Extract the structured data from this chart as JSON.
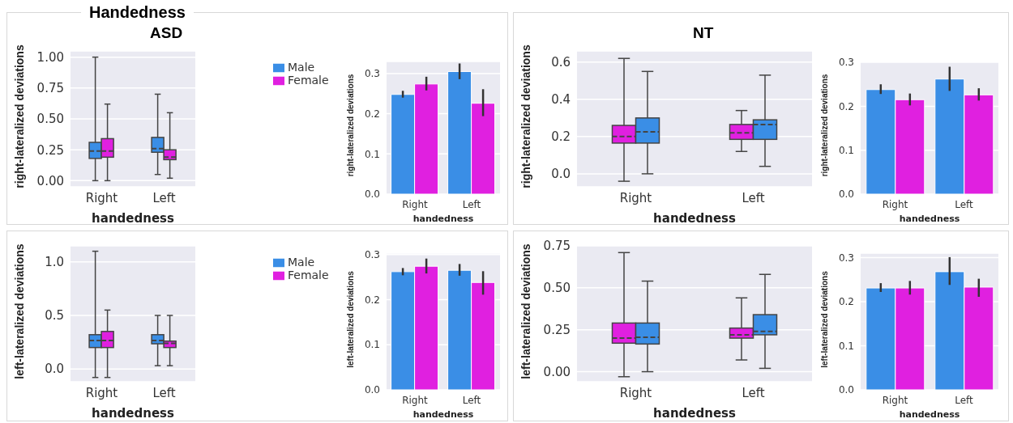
{
  "chart_data": [
    {
      "type": "box",
      "title": "Handedness",
      "subtitle": "ASD",
      "xlabel": "handedness",
      "ylabel": "right-lateralized deviations",
      "categories": [
        "Right",
        "Left"
      ],
      "ylim": [
        -0.05,
        1.05
      ],
      "yticks": [
        {
          "value": 0,
          "label": "0.00"
        },
        {
          "value": 0.25,
          "label": "0.25"
        },
        {
          "value": 0.5,
          "label": "0.50"
        },
        {
          "value": 0.75,
          "label": "0.75"
        },
        {
          "value": 1,
          "label": "1.00"
        }
      ],
      "grid": "y",
      "legend": "right",
      "series": [
        {
          "name": "Male",
          "color": "#3a8ee6",
          "boxes": [
            {
              "low": 0.0,
              "q1": 0.18,
              "median": 0.24,
              "q3": 0.31,
              "high": 1.0
            },
            {
              "low": 0.05,
              "q1": 0.23,
              "median": 0.26,
              "q3": 0.35,
              "high": 0.7
            }
          ]
        },
        {
          "name": "Female",
          "color": "#e020e0",
          "boxes": [
            {
              "low": 0.0,
              "q1": 0.19,
              "median": 0.24,
              "q3": 0.34,
              "high": 0.62
            },
            {
              "low": 0.02,
              "q1": 0.17,
              "median": 0.19,
              "q3": 0.25,
              "high": 0.55
            }
          ]
        }
      ]
    },
    {
      "type": "bar",
      "xlabel": "handedness",
      "ylabel": "right-lateralized deviations",
      "categories": [
        "Right",
        "Left"
      ],
      "ylim": [
        0,
        0.33
      ],
      "yticks": [
        {
          "value": 0,
          "label": "0.0"
        },
        0.1,
        0.2,
        0.3
      ],
      "grid": "y",
      "series": [
        {
          "color": "#3a8ee6",
          "values": [
            0.248,
            0.305
          ],
          "errors": [
            [
              0.24,
              0.257
            ],
            [
              0.286,
              0.325
            ]
          ]
        },
        {
          "color": "#e020e0",
          "values": [
            0.274,
            0.226
          ],
          "errors": [
            [
              0.258,
              0.292
            ],
            [
              0.194,
              0.261
            ]
          ]
        }
      ]
    },
    {
      "type": "box",
      "subtitle": "NT",
      "xlabel": "handedness",
      "ylabel": "right-lateralized deviations",
      "categories": [
        "Right",
        "Left"
      ],
      "ylim": [
        -0.07,
        0.66
      ],
      "yticks": [
        {
          "value": 0,
          "label": "0.0"
        },
        0.2,
        0.4,
        0.6
      ],
      "grid": "y",
      "series": [
        {
          "color": "#e020e0",
          "boxes": [
            {
              "low": -0.04,
              "q1": 0.165,
              "median": 0.2,
              "q3": 0.26,
              "high": 0.62
            },
            {
              "low": 0.12,
              "q1": 0.185,
              "median": 0.22,
              "q3": 0.265,
              "high": 0.34
            }
          ]
        },
        {
          "color": "#3a8ee6",
          "boxes": [
            {
              "low": 0.0,
              "q1": 0.165,
              "median": 0.225,
              "q3": 0.3,
              "high": 0.55
            },
            {
              "low": 0.04,
              "q1": 0.185,
              "median": 0.265,
              "q3": 0.29,
              "high": 0.53
            }
          ]
        }
      ]
    },
    {
      "type": "bar",
      "xlabel": "handedness",
      "ylabel": "right-lateralized deviations",
      "categories": [
        "Right",
        "Left"
      ],
      "ylim": [
        0,
        0.302
      ],
      "yticks": [
        {
          "value": 0,
          "label": "0.0"
        },
        0.1,
        0.2,
        0.3
      ],
      "grid": "y",
      "series": [
        {
          "color": "#3a8ee6",
          "values": [
            0.238,
            0.262
          ],
          "errors": [
            [
              0.228,
              0.25
            ],
            [
              0.235,
              0.29
            ]
          ]
        },
        {
          "color": "#e020e0",
          "values": [
            0.215,
            0.226
          ],
          "errors": [
            [
              0.202,
              0.229
            ],
            [
              0.213,
              0.241
            ]
          ]
        }
      ]
    },
    {
      "type": "box",
      "xlabel": "handedness",
      "ylabel": "left-lateralized deviations",
      "categories": [
        "Right",
        "Left"
      ],
      "ylim": [
        -0.12,
        1.15
      ],
      "yticks": [
        {
          "value": 0,
          "label": "0.0"
        },
        0.5,
        {
          "value": 1,
          "label": "1.0"
        }
      ],
      "grid": "y",
      "legend": "right",
      "series": [
        {
          "name": "Male",
          "color": "#3a8ee6",
          "boxes": [
            {
              "low": -0.08,
              "q1": 0.2,
              "median": 0.265,
              "q3": 0.32,
              "high": 1.1
            },
            {
              "low": 0.03,
              "q1": 0.235,
              "median": 0.265,
              "q3": 0.32,
              "high": 0.5
            }
          ]
        },
        {
          "name": "Female",
          "color": "#e020e0",
          "boxes": [
            {
              "low": -0.08,
              "q1": 0.2,
              "median": 0.265,
              "q3": 0.35,
              "high": 0.55
            },
            {
              "low": 0.03,
              "q1": 0.2,
              "median": 0.24,
              "q3": 0.26,
              "high": 0.5
            }
          ]
        }
      ]
    },
    {
      "type": "bar",
      "xlabel": "handedness",
      "ylabel": "left-lateralized deviations",
      "categories": [
        "Right",
        "Left"
      ],
      "ylim": [
        0,
        0.303
      ],
      "yticks": [
        {
          "value": 0,
          "label": "0.0"
        },
        0.1,
        0.2,
        0.3
      ],
      "grid": "y",
      "series": [
        {
          "color": "#3a8ee6",
          "values": [
            0.262,
            0.265
          ],
          "errors": [
            [
              0.254,
              0.27
            ],
            [
              0.253,
              0.279
            ]
          ]
        },
        {
          "color": "#e020e0",
          "values": [
            0.274,
            0.238
          ],
          "errors": [
            [
              0.258,
              0.291
            ],
            [
              0.211,
              0.263
            ]
          ]
        }
      ]
    },
    {
      "type": "box",
      "xlabel": "handedness",
      "ylabel": "left-lateralized deviations",
      "categories": [
        "Right",
        "Left"
      ],
      "ylim": [
        -0.06,
        0.75
      ],
      "yticks": [
        {
          "value": 0,
          "label": "0.00"
        },
        {
          "value": 0.25,
          "label": "0.25"
        },
        {
          "value": 0.5,
          "label": "0.50"
        },
        {
          "value": 0.75,
          "label": "0.75"
        }
      ],
      "grid": "y",
      "series": [
        {
          "color": "#e020e0",
          "boxes": [
            {
              "low": -0.03,
              "q1": 0.17,
              "median": 0.2,
              "q3": 0.29,
              "high": 0.71
            },
            {
              "low": 0.07,
              "q1": 0.2,
              "median": 0.22,
              "q3": 0.26,
              "high": 0.44
            }
          ]
        },
        {
          "color": "#3a8ee6",
          "boxes": [
            {
              "low": 0.0,
              "q1": 0.165,
              "median": 0.205,
              "q3": 0.29,
              "high": 0.54
            },
            {
              "low": 0.02,
              "q1": 0.22,
              "median": 0.24,
              "q3": 0.34,
              "high": 0.58
            }
          ]
        }
      ]
    },
    {
      "type": "bar",
      "xlabel": "handedness",
      "ylabel": "left-lateralized deviations",
      "categories": [
        "Right",
        "Left"
      ],
      "ylim": [
        0,
        0.31
      ],
      "yticks": [
        {
          "value": 0,
          "label": "0.0"
        },
        0.1,
        0.2,
        0.3
      ],
      "grid": "y",
      "series": [
        {
          "color": "#3a8ee6",
          "values": [
            0.231,
            0.268
          ],
          "errors": [
            [
              0.222,
              0.242
            ],
            [
              0.238,
              0.301
            ]
          ]
        },
        {
          "color": "#e020e0",
          "values": [
            0.231,
            0.233
          ],
          "errors": [
            [
              0.216,
              0.247
            ],
            [
              0.211,
              0.252
            ]
          ]
        }
      ]
    }
  ]
}
